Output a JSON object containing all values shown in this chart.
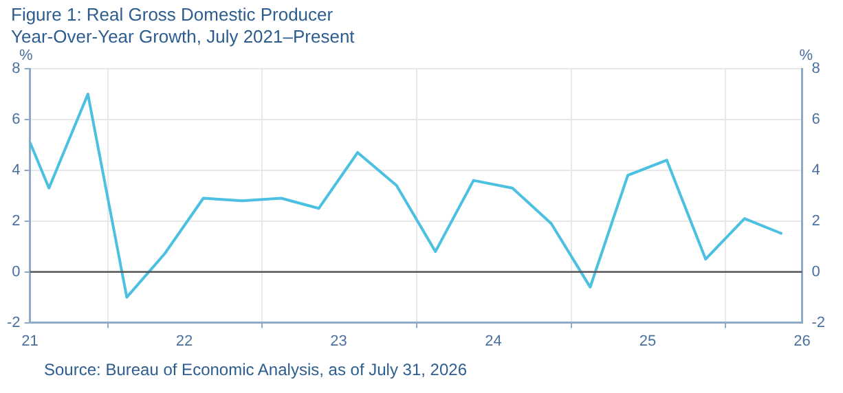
{
  "chart_data": {
    "type": "line",
    "title": "Figure 1: Real Gross Domestic Producer",
    "subtitle": "Year-Over-Year Growth, July 2021–Present",
    "ylabel": "%",
    "y2label": "%",
    "x": [
      "2021-07-01",
      "2021-08-15",
      "2021-11-15",
      "2022-02-15",
      "2022-05-15",
      "2022-08-15",
      "2022-11-15",
      "2023-02-15",
      "2023-05-15",
      "2023-08-15",
      "2023-11-15",
      "2024-02-15",
      "2024-05-15",
      "2024-08-15",
      "2024-11-15",
      "2025-02-15",
      "2025-05-15",
      "2025-08-15",
      "2025-11-15",
      "2026-02-15",
      "2026-05-15"
    ],
    "series": [
      {
        "color": "#4cc0e0",
        "values": [
          5.1,
          3.3,
          7.0,
          -1.0,
          0.7,
          2.9,
          2.8,
          2.9,
          2.5,
          4.7,
          3.4,
          0.8,
          3.6,
          3.3,
          1.9,
          -0.6,
          3.8,
          4.4,
          0.5,
          2.1,
          1.5
        ]
      }
    ],
    "xlim": [
      "2021-07-01",
      "2026-07-01"
    ],
    "xticks": [
      {
        "value": "2021-07-01",
        "label": "21"
      },
      {
        "value": "2022-01-01",
        "label": null
      },
      {
        "value": "2022-07-01",
        "label": "22"
      },
      {
        "value": "2023-01-01",
        "label": null
      },
      {
        "value": "2023-07-01",
        "label": "23"
      },
      {
        "value": "2024-01-01",
        "label": null
      },
      {
        "value": "2024-07-01",
        "label": "24"
      },
      {
        "value": "2025-01-01",
        "label": null
      },
      {
        "value": "2025-07-01",
        "label": "25"
      },
      {
        "value": "2026-01-01",
        "label": null
      },
      {
        "value": "2026-07-01",
        "label": "26"
      }
    ],
    "ylim": [
      -2,
      8
    ],
    "yticks": [
      -2,
      0,
      2,
      4,
      6,
      8
    ],
    "y2lim": [
      -2,
      8
    ],
    "y2ticks": [
      -2,
      0,
      2,
      4,
      6,
      8
    ],
    "ref_lines": [
      {
        "axis": "y",
        "value": 0,
        "color": "#555555"
      }
    ],
    "grid": true,
    "legend": false,
    "marker": "none",
    "line_style": "solid",
    "annotations": [
      "Source: Bureau of Economic Analysis, as of July 31, 2026"
    ]
  }
}
